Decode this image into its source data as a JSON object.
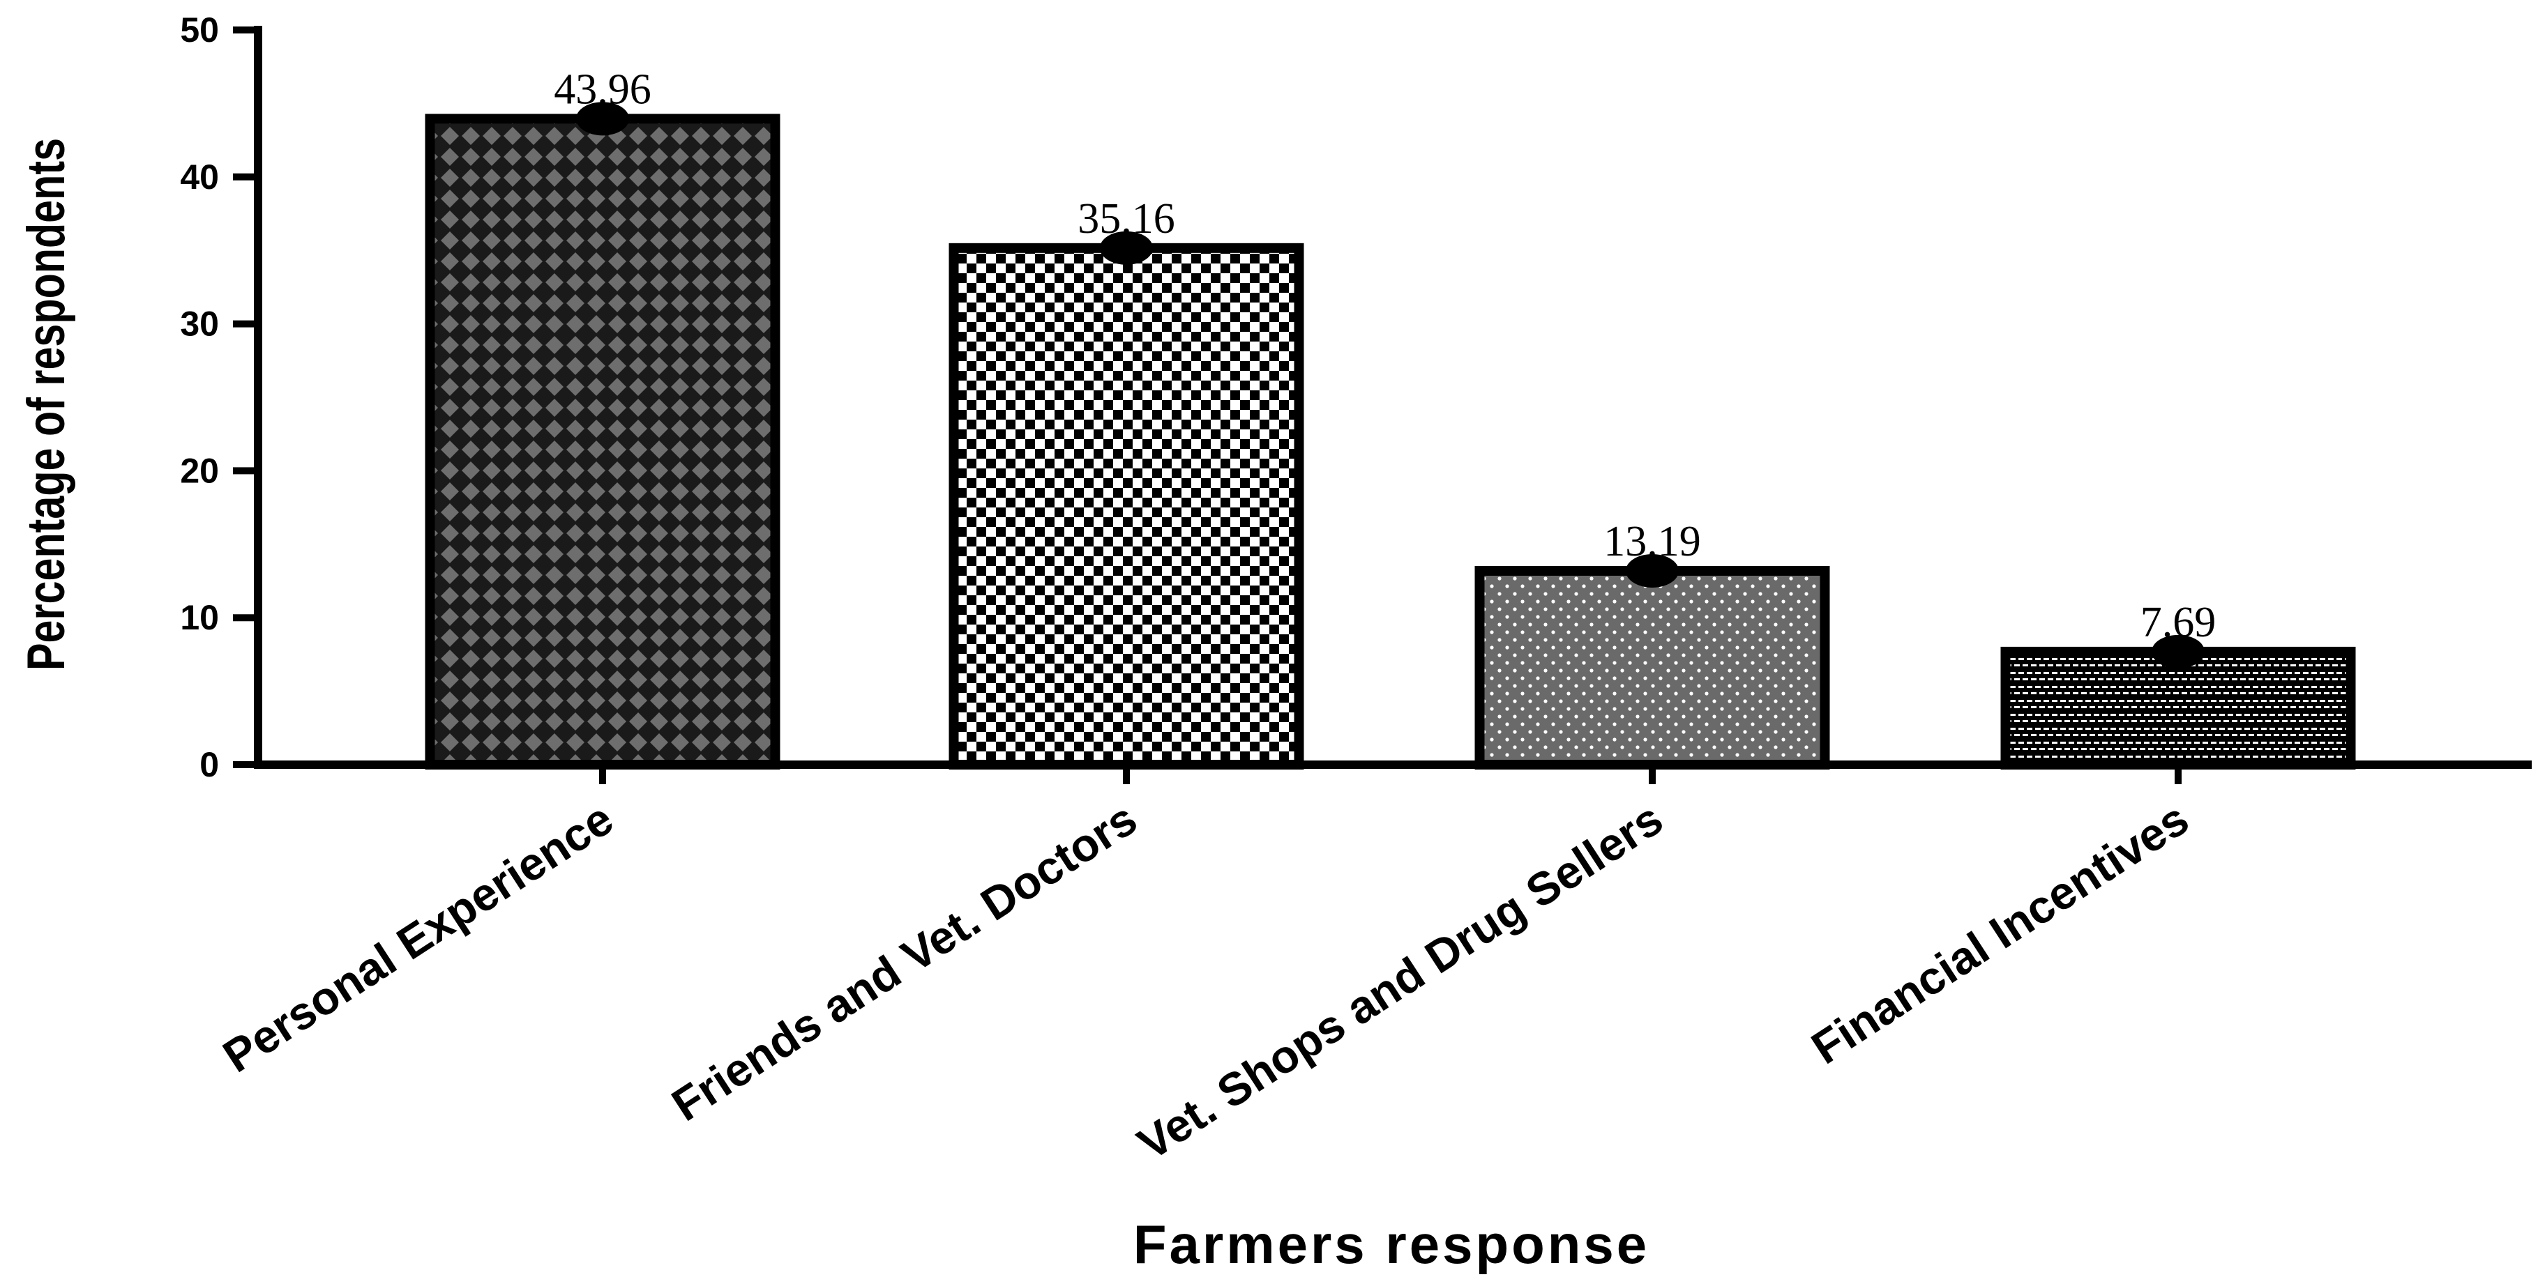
{
  "chart_data": {
    "type": "bar",
    "categories": [
      "Personal Experience",
      "Friends and Vet. Doctors",
      "Vet. Shops and Drug Sellers",
      "Financial Incentives"
    ],
    "values": [
      43.96,
      35.16,
      13.19,
      7.69
    ],
    "value_labels": [
      "43.96",
      "35.16",
      "13.19",
      "7.69"
    ],
    "title": "",
    "xlabel": "Farmers response",
    "ylabel": "Percentage of respondents",
    "ylim": [
      0,
      50
    ],
    "yticks": [
      0,
      10,
      20,
      30,
      40,
      50
    ],
    "ytick_labels": [
      "0",
      "10",
      "20",
      "30",
      "40",
      "50"
    ],
    "grid": false,
    "legend": "none",
    "bar_patterns": [
      "diamond-checker",
      "checkerboard",
      "dotted",
      "brick"
    ],
    "colors": {
      "axis": "#000000",
      "bar_outline": "#000000",
      "pattern_dark": "#000000",
      "pattern_mid": "#6e6e6e",
      "pattern_light": "#ffffff"
    }
  }
}
